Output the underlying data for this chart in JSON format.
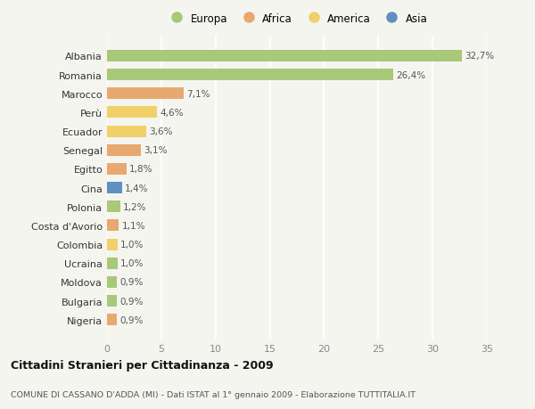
{
  "countries": [
    "Albania",
    "Romania",
    "Marocco",
    "Perù",
    "Ecuador",
    "Senegal",
    "Egitto",
    "Cina",
    "Polonia",
    "Costa d'Avorio",
    "Colombia",
    "Ucraina",
    "Moldova",
    "Bulgaria",
    "Nigeria"
  ],
  "values": [
    32.7,
    26.4,
    7.1,
    4.6,
    3.6,
    3.1,
    1.8,
    1.4,
    1.2,
    1.1,
    1.0,
    1.0,
    0.9,
    0.9,
    0.9
  ],
  "labels": [
    "32,7%",
    "26,4%",
    "7,1%",
    "4,6%",
    "3,6%",
    "3,1%",
    "1,8%",
    "1,4%",
    "1,2%",
    "1,1%",
    "1,0%",
    "1,0%",
    "0,9%",
    "0,9%",
    "0,9%"
  ],
  "colors": [
    "#a8c87a",
    "#a8c87a",
    "#e8a870",
    "#f0d068",
    "#f0d068",
    "#e8a870",
    "#e8a870",
    "#6090c0",
    "#a8c87a",
    "#e8a870",
    "#f0d068",
    "#a8c87a",
    "#a8c87a",
    "#a8c87a",
    "#e8a870"
  ],
  "legend_labels": [
    "Europa",
    "Africa",
    "America",
    "Asia"
  ],
  "legend_colors": [
    "#a8c87a",
    "#e8a870",
    "#f0d068",
    "#6090c0"
  ],
  "title": "Cittadini Stranieri per Cittadinanza - 2009",
  "subtitle": "COMUNE DI CASSANO D'ADDA (MI) - Dati ISTAT al 1° gennaio 2009 - Elaborazione TUTTITALIA.IT",
  "xlim": [
    0,
    35
  ],
  "xticks": [
    0,
    5,
    10,
    15,
    20,
    25,
    30,
    35
  ],
  "background_color": "#f5f5f0",
  "grid_color": "#ffffff"
}
